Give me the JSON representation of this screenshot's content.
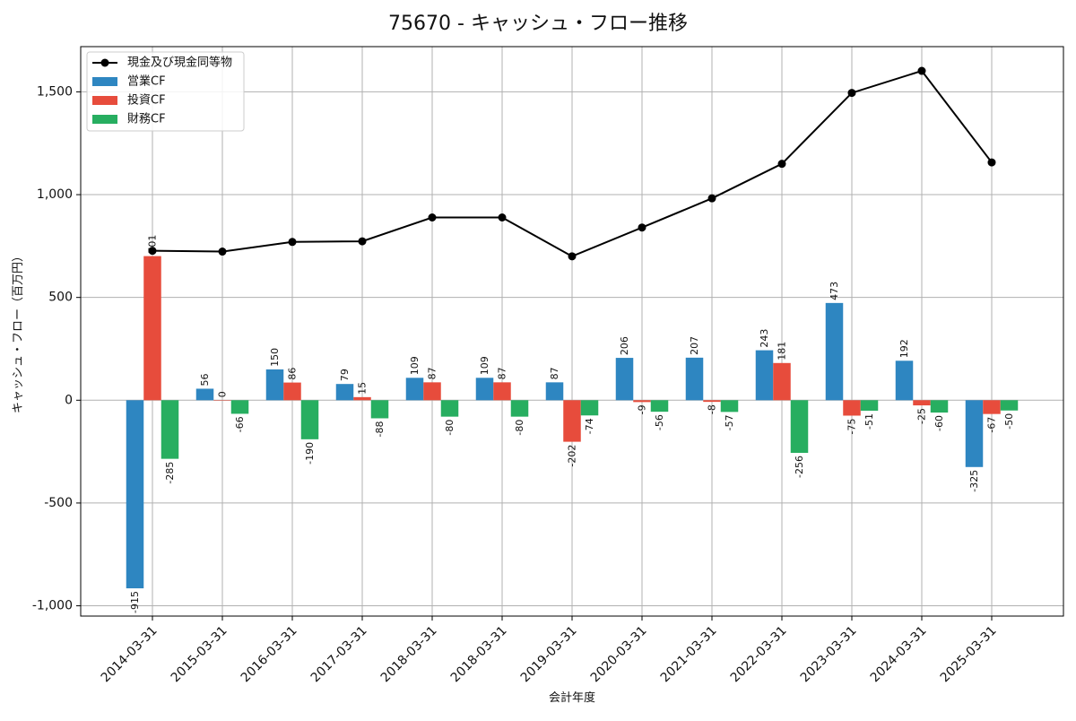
{
  "chart_data": {
    "type": "bar",
    "title": "75670 - キャッシュ・フロー推移",
    "xlabel": "会計年度",
    "ylabel": "キャッシュ・フロー（百万円）",
    "ylim": [
      -1050,
      1720
    ],
    "yticks": [
      -1000,
      -500,
      0,
      500,
      1000,
      1500
    ],
    "ytick_labels": [
      "-1,000",
      "-500",
      "0",
      "500",
      "1,000",
      "1,500"
    ],
    "grid": true,
    "legend_position": "top-left",
    "categories": [
      "2014-03-31",
      "2015-03-31",
      "2016-03-31",
      "2017-03-31",
      "2018-03-31",
      "2018-03-31",
      "2019-03-31",
      "2020-03-31",
      "2021-03-31",
      "2022-03-31",
      "2023-03-31",
      "2024-03-31",
      "2025-03-31"
    ],
    "series": [
      {
        "name": "営業CF",
        "type": "bar",
        "color": "#2e86c1",
        "values": [
          -915,
          56,
          150,
          79,
          109,
          109,
          87,
          206,
          207,
          243,
          473,
          192,
          -325
        ],
        "labels": [
          "-915",
          "56",
          "150",
          "79",
          "109",
          "109",
          "87",
          "206",
          "207",
          "243",
          "473",
          "192",
          "-325"
        ]
      },
      {
        "name": "投資CF",
        "type": "bar",
        "color": "#e74c3c",
        "values": [
          701,
          0,
          86,
          15,
          87,
          87,
          -202,
          -9,
          -8,
          181,
          -75,
          -25,
          -67
        ],
        "labels": [
          "701",
          "0",
          "86",
          "15",
          "87",
          "87",
          "-202",
          "-9",
          "-8",
          "181",
          "-75",
          "-25",
          "-67"
        ]
      },
      {
        "name": "財務CF",
        "type": "bar",
        "color": "#27ae60",
        "values": [
          -285,
          -66,
          -190,
          -88,
          -80,
          -80,
          -74,
          -56,
          -57,
          -256,
          -51,
          -60,
          -50
        ],
        "labels": [
          "-285",
          "-66",
          "-190",
          "-88",
          "-80",
          "-80",
          "-74",
          "-56",
          "-57",
          "-256",
          "-51",
          "-60",
          "-50"
        ]
      },
      {
        "name": "現金及び現金同等物",
        "type": "line",
        "color": "#000000",
        "values": [
          727,
          723,
          770,
          773,
          889,
          889,
          700,
          840,
          982,
          1150,
          1495,
          1602,
          1157
        ]
      }
    ]
  }
}
